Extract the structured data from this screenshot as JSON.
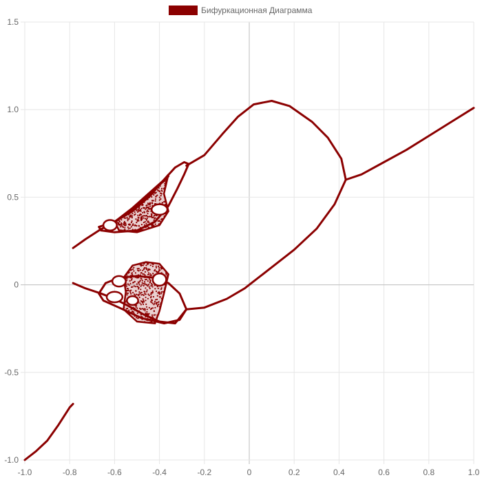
{
  "chart_data": {
    "type": "scatter",
    "title": "",
    "xlabel": "",
    "ylabel": "",
    "xlim": [
      -1.0,
      1.0
    ],
    "ylim": [
      -1.0,
      1.5
    ],
    "x_ticks": [
      "-1.0",
      "-0.8",
      "-0.6",
      "-0.4",
      "-0.2",
      "0",
      "0.2",
      "0.4",
      "0.6",
      "0.8",
      "1.0"
    ],
    "y_ticks": [
      "-1.0",
      "-0.5",
      "0",
      "0.5",
      "1.0",
      "1.5"
    ],
    "grid": true,
    "legend_position": "top-center",
    "series": [
      {
        "name": "Бифуркационная Диаграмма",
        "color": "#8b0000",
        "curves": [
          {
            "part": "lower-tail",
            "points": [
              [
                -1.0,
                -1.0
              ],
              [
                -0.95,
                -0.95
              ],
              [
                -0.9,
                -0.89
              ],
              [
                -0.85,
                -0.8
              ],
              [
                -0.8,
                -0.7
              ],
              [
                -0.785,
                -0.68
              ]
            ]
          },
          {
            "part": "main-upper-arm",
            "points": [
              [
                -0.28,
                0.68
              ],
              [
                -0.2,
                0.74
              ],
              [
                -0.12,
                0.86
              ],
              [
                -0.05,
                0.96
              ],
              [
                0.02,
                1.03
              ],
              [
                0.1,
                1.05
              ],
              [
                0.18,
                1.02
              ],
              [
                0.28,
                0.93
              ],
              [
                0.35,
                0.84
              ],
              [
                0.41,
                0.72
              ],
              [
                0.43,
                0.6
              ]
            ]
          },
          {
            "part": "main-lower-arm",
            "points": [
              [
                -0.28,
                -0.14
              ],
              [
                -0.2,
                -0.13
              ],
              [
                -0.1,
                -0.08
              ],
              [
                -0.02,
                -0.02
              ],
              [
                0.0,
                0.0
              ],
              [
                0.1,
                0.1
              ],
              [
                0.2,
                0.2
              ],
              [
                0.3,
                0.32
              ],
              [
                0.38,
                0.46
              ],
              [
                0.43,
                0.6
              ]
            ]
          },
          {
            "part": "right-branch",
            "points": [
              [
                0.43,
                0.6
              ],
              [
                0.5,
                0.63
              ],
              [
                0.6,
                0.7
              ],
              [
                0.7,
                0.77
              ],
              [
                0.8,
                0.85
              ],
              [
                0.9,
                0.93
              ],
              [
                1.0,
                1.01
              ]
            ]
          },
          {
            "part": "upper-left-stem",
            "points": [
              [
                -0.785,
                0.21
              ],
              [
                -0.73,
                0.26
              ],
              [
                -0.67,
                0.31
              ],
              [
                -0.6,
                0.36
              ],
              [
                -0.52,
                0.43
              ],
              [
                -0.44,
                0.52
              ],
              [
                -0.36,
                0.62
              ]
            ]
          },
          {
            "part": "upper-loop-outer",
            "points": [
              [
                -0.66,
                0.31
              ],
              [
                -0.6,
                0.3
              ],
              [
                -0.5,
                0.31
              ],
              [
                -0.42,
                0.36
              ],
              [
                -0.36,
                0.45
              ],
              [
                -0.32,
                0.55
              ],
              [
                -0.29,
                0.63
              ],
              [
                -0.27,
                0.69
              ],
              [
                -0.29,
                0.7
              ],
              [
                -0.33,
                0.67
              ],
              [
                -0.38,
                0.6
              ],
              [
                -0.44,
                0.51
              ],
              [
                -0.52,
                0.42
              ],
              [
                -0.6,
                0.36
              ],
              [
                -0.67,
                0.33
              ],
              [
                -0.66,
                0.31
              ]
            ]
          },
          {
            "part": "lower-left-stem",
            "points": [
              [
                -0.785,
                0.01
              ],
              [
                -0.73,
                -0.02
              ],
              [
                -0.66,
                -0.05
              ],
              [
                -0.6,
                -0.08
              ],
              [
                -0.54,
                -0.12
              ],
              [
                -0.47,
                -0.17
              ],
              [
                -0.4,
                -0.21
              ],
              [
                -0.33,
                -0.22
              ],
              [
                -0.28,
                -0.14
              ]
            ]
          },
          {
            "part": "lower-loop-outer",
            "points": [
              [
                -0.67,
                -0.05
              ],
              [
                -0.64,
                0.01
              ],
              [
                -0.58,
                0.04
              ],
              [
                -0.5,
                0.05
              ],
              [
                -0.42,
                0.04
              ],
              [
                -0.36,
                0.01
              ],
              [
                -0.31,
                -0.05
              ],
              [
                -0.28,
                -0.14
              ],
              [
                -0.31,
                -0.2
              ],
              [
                -0.38,
                -0.22
              ],
              [
                -0.48,
                -0.19
              ],
              [
                -0.58,
                -0.13
              ],
              [
                -0.65,
                -0.09
              ],
              [
                -0.67,
                -0.05
              ]
            ]
          }
        ],
        "regions": [
          {
            "part": "upper-chaos",
            "x_range": [
              -0.6,
              -0.35
            ],
            "y_range": [
              0.3,
              0.64
            ],
            "outline": [
              [
                -0.6,
                0.36
              ],
              [
                -0.52,
                0.44
              ],
              [
                -0.45,
                0.52
              ],
              [
                -0.38,
                0.6
              ],
              [
                -0.36,
                0.63
              ],
              [
                -0.38,
                0.52
              ],
              [
                -0.36,
                0.42
              ],
              [
                -0.4,
                0.34
              ],
              [
                -0.5,
                0.3
              ],
              [
                -0.58,
                0.31
              ],
              [
                -0.6,
                0.36
              ]
            ]
          },
          {
            "part": "lower-chaos",
            "x_range": [
              -0.58,
              -0.36
            ],
            "y_range": [
              -0.23,
              0.13
            ],
            "outline": [
              [
                -0.56,
                0.04
              ],
              [
                -0.52,
                0.11
              ],
              [
                -0.46,
                0.13
              ],
              [
                -0.4,
                0.12
              ],
              [
                -0.36,
                0.06
              ],
              [
                -0.38,
                -0.05
              ],
              [
                -0.4,
                -0.15
              ],
              [
                -0.42,
                -0.22
              ],
              [
                -0.5,
                -0.21
              ],
              [
                -0.56,
                -0.14
              ],
              [
                -0.55,
                -0.04
              ],
              [
                -0.56,
                0.04
              ]
            ]
          }
        ],
        "islands": [
          {
            "cx": -0.62,
            "cy": 0.34,
            "rx": 0.03,
            "ry": 0.03
          },
          {
            "cx": -0.4,
            "cy": 0.43,
            "rx": 0.035,
            "ry": 0.03
          },
          {
            "cx": -0.58,
            "cy": 0.02,
            "rx": 0.03,
            "ry": 0.03
          },
          {
            "cx": -0.4,
            "cy": 0.03,
            "rx": 0.03,
            "ry": 0.035
          },
          {
            "cx": -0.6,
            "cy": -0.07,
            "rx": 0.035,
            "ry": 0.03
          },
          {
            "cx": -0.52,
            "cy": -0.09,
            "rx": 0.025,
            "ry": 0.025
          }
        ]
      }
    ]
  }
}
